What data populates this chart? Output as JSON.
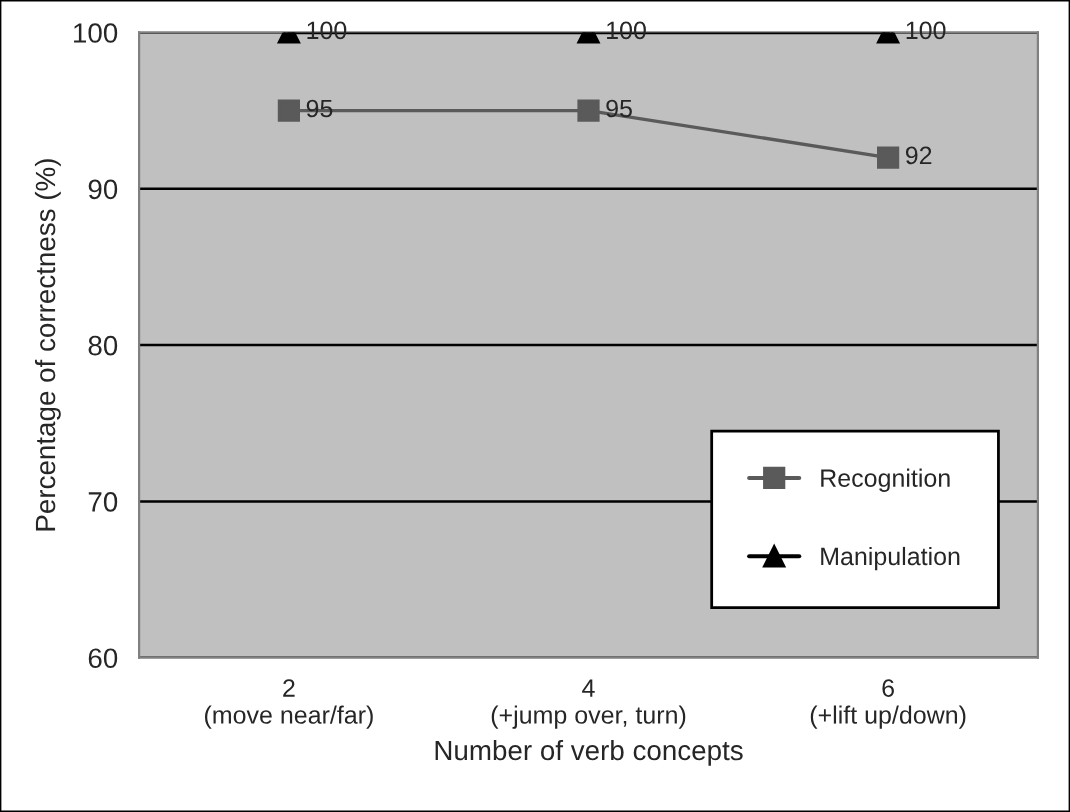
{
  "chart_data": {
    "type": "line",
    "xlabel": "Number of verb concepts",
    "ylabel": "Percentage of correctness (%)",
    "x": [
      2,
      4,
      6
    ],
    "series": [
      {
        "name": "Recognition",
        "color": "#5a5a5a",
        "marker": "square",
        "values": [
          95,
          95,
          92
        ]
      },
      {
        "name": "Manipulation",
        "color": "#000000",
        "marker": "triangle",
        "values": [
          100,
          100,
          100
        ]
      }
    ],
    "xlim": [
      1,
      7
    ],
    "xticks": [
      {
        "value": 2,
        "label": "2\n(move near/far)"
      },
      {
        "value": 4,
        "label": "4\n(+jump over, turn)"
      },
      {
        "value": 6,
        "label": "6\n(+lift up/down)"
      }
    ],
    "ylim": [
      60,
      100
    ],
    "yticks": [
      60,
      70,
      80,
      90,
      100
    ],
    "grid": "y",
    "legend": "bottom right",
    "data_labels": true
  }
}
